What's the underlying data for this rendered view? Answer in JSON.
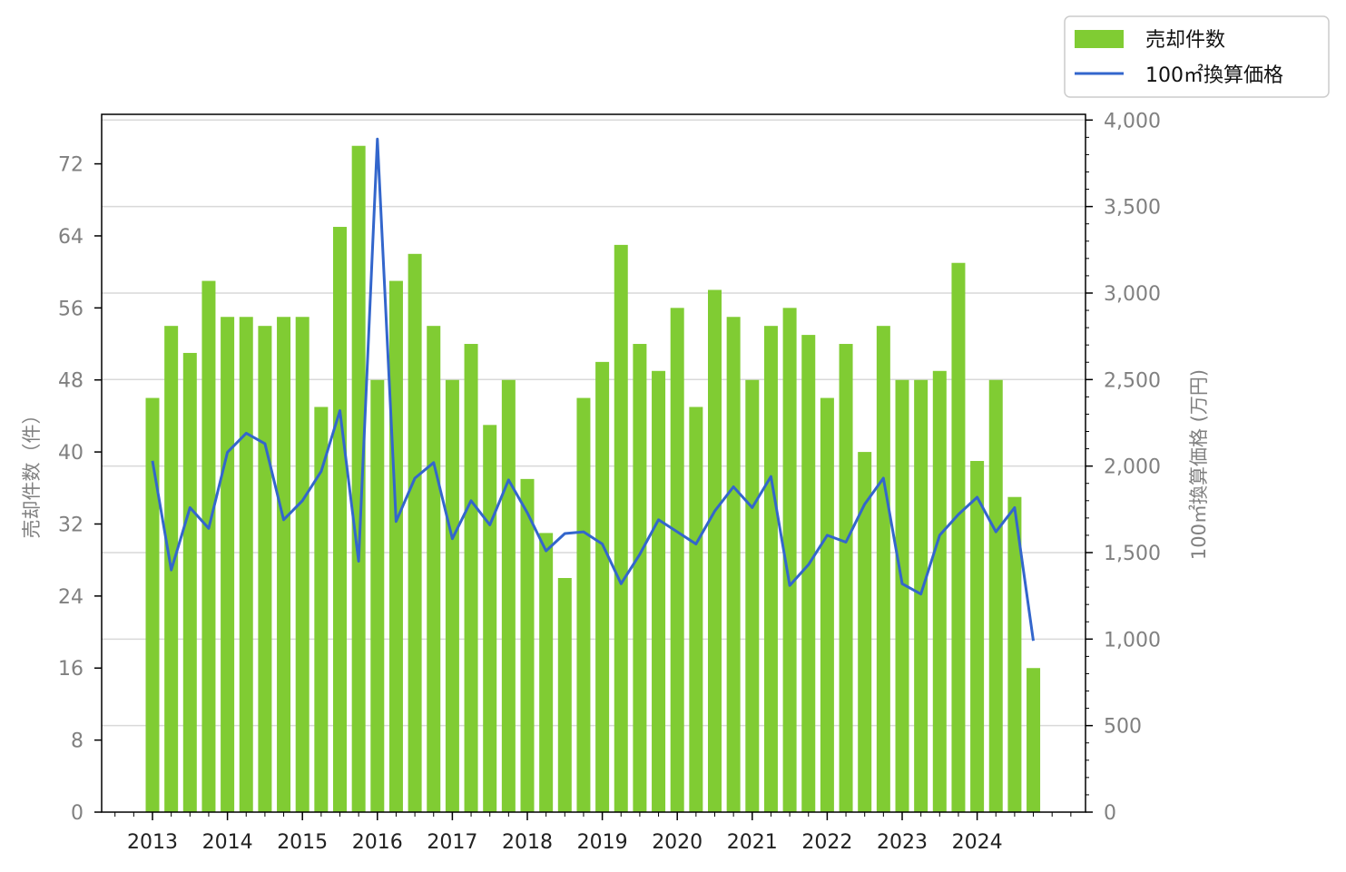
{
  "chart_data": {
    "type": "bar",
    "x_ticks": [
      "2013",
      "2014",
      "2015",
      "2016",
      "2017",
      "2018",
      "2019",
      "2020",
      "2021",
      "2022",
      "2023",
      "2024"
    ],
    "ylabel_left": "売却件数（件）",
    "ylabel_right": "100㎡換算価格 (万円)",
    "left_ticks": [
      "0",
      "8",
      "16",
      "24",
      "32",
      "40",
      "48",
      "56",
      "64",
      "72"
    ],
    "right_ticks": [
      "0",
      "500",
      "1,000",
      "1,500",
      "2,000",
      "2,500",
      "3,000",
      "3,500",
      "4,000"
    ],
    "ylim_left": [
      0,
      77.5
    ],
    "ylim_right": [
      0,
      4033
    ],
    "series": [
      {
        "name": "売却件数",
        "type": "bar",
        "color": "#80cc33",
        "values": [
          46,
          54,
          51,
          59,
          55,
          55,
          54,
          55,
          55,
          45,
          65,
          74,
          48,
          59,
          62,
          54,
          48,
          52,
          43,
          48,
          37,
          31,
          26,
          46,
          50,
          63,
          52,
          49,
          56,
          45,
          58,
          55,
          48,
          54,
          56,
          53,
          46,
          52,
          40,
          54,
          48,
          48,
          49,
          61,
          39,
          48,
          35,
          16
        ]
      },
      {
        "name": "100㎡換算価格",
        "type": "line",
        "color": "#3366cc",
        "values": [
          2030,
          1400,
          1760,
          1640,
          2080,
          2190,
          2130,
          1690,
          1800,
          1970,
          2320,
          1450,
          3890,
          1680,
          1930,
          2020,
          1580,
          1800,
          1660,
          1920,
          1730,
          1510,
          1610,
          1620,
          1550,
          1320,
          1490,
          1690,
          1620,
          1550,
          1740,
          1880,
          1760,
          1940,
          1310,
          1430,
          1600,
          1560,
          1780,
          1930,
          1320,
          1260,
          1600,
          1720,
          1820,
          1620,
          1760,
          990
        ]
      }
    ],
    "grid": "horizontal (right axis)",
    "legend_placement": "top-right, outside plot"
  }
}
